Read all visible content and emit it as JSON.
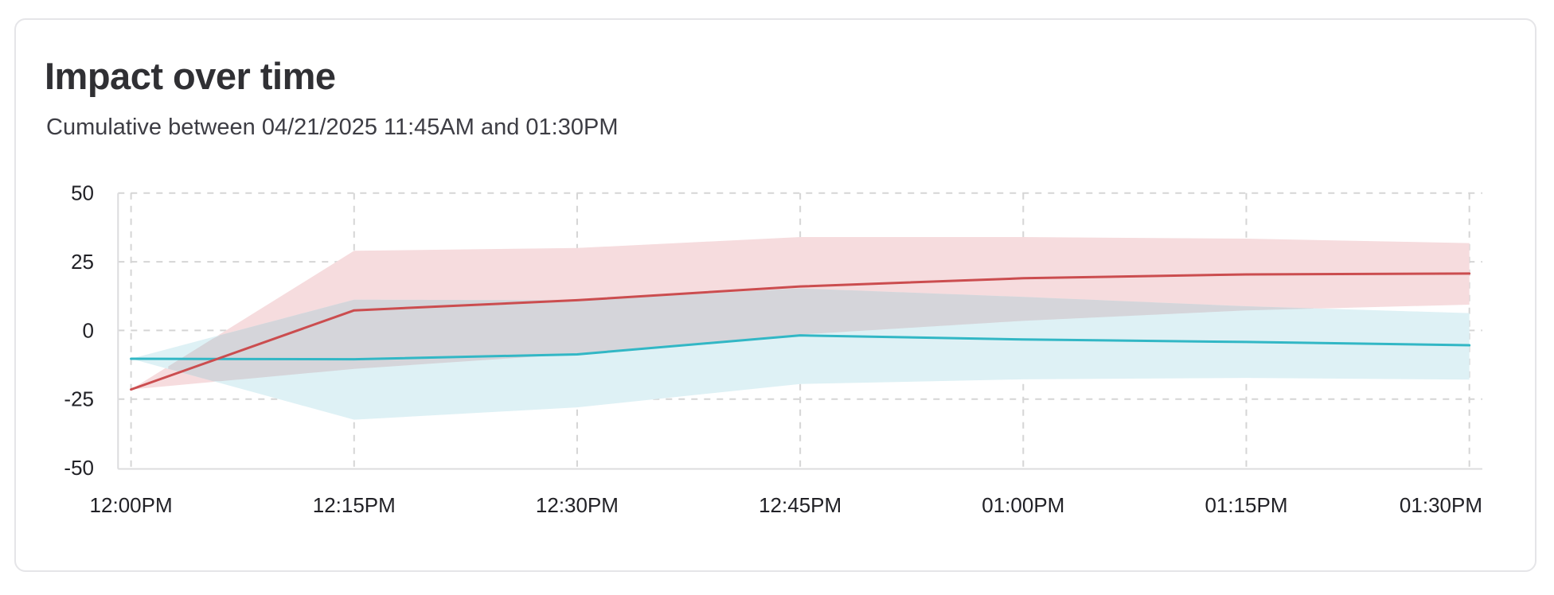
{
  "card": {
    "title": "Impact over time",
    "subtitle": "Cumulative between 04/21/2025 11:45AM and 01:30PM"
  },
  "chart_data": {
    "type": "line",
    "title": "Impact over time",
    "subtitle": "Cumulative between 04/21/2025 11:45AM and 01:30PM",
    "x_labels": [
      "12:00PM",
      "12:15PM",
      "12:30PM",
      "12:45PM",
      "01:00PM",
      "01:15PM",
      "01:30PM"
    ],
    "y_ticks": [
      50,
      25,
      0,
      -25,
      -50
    ],
    "ylim": [
      -50,
      50
    ],
    "grid": "dashed",
    "legend": "none",
    "band_overlap_color": "#d5d5da",
    "series": [
      {
        "name": "red-series",
        "color": "#cb4d4f",
        "band_color": "#f6dcde",
        "values": [
          -21.5,
          7.3,
          11,
          16,
          19,
          20.4,
          20.7
        ],
        "band_upper": [
          -21.5,
          29,
          30,
          34,
          34,
          33.4,
          31.8
        ],
        "band_lower": [
          -21.5,
          -14,
          -8.5,
          -1.5,
          3.5,
          7.3,
          9.4
        ]
      },
      {
        "name": "cyan-series",
        "color": "#32b7c5",
        "band_color": "#def1f5",
        "values": [
          -10.3,
          -10.5,
          -8.7,
          -1.8,
          -3.3,
          -4.2,
          -5.4
        ],
        "band_upper": [
          -10.3,
          11.2,
          11,
          15.3,
          12.2,
          8.8,
          6.3
        ],
        "band_lower": [
          -10.3,
          -32.5,
          -28,
          -19.5,
          -17.8,
          -17.3,
          -17.9
        ]
      }
    ]
  }
}
